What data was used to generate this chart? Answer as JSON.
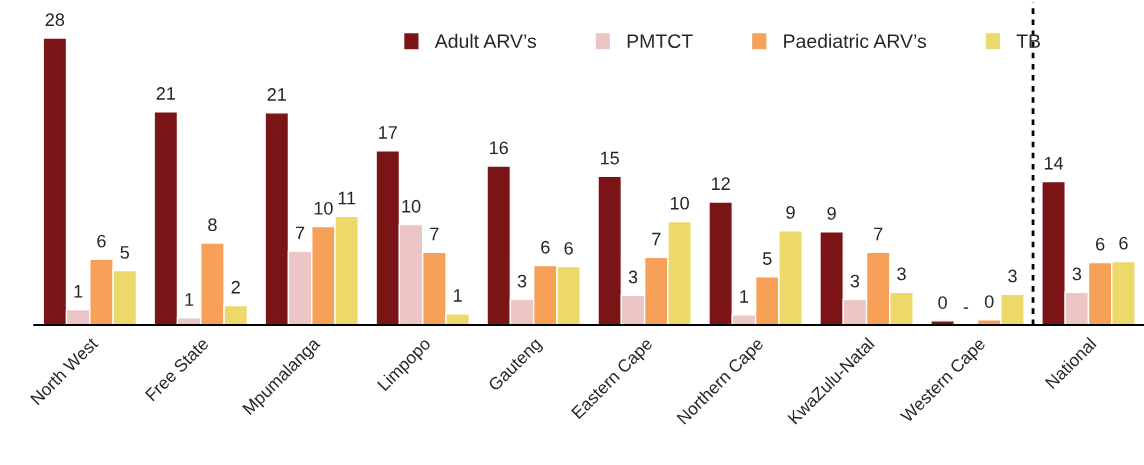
{
  "chart_data": {
    "type": "bar",
    "categories": [
      "North West",
      "Free State",
      "Mpumalanga",
      "Limpopo",
      "Gauteng",
      "Eastern Cape",
      "Northern Cape",
      "KwaZulu-Natal",
      "Western Cape",
      "National"
    ],
    "series": [
      {
        "name": "Adult ARV’s",
        "color": "#7b1416",
        "values": [
          28.0,
          20.8,
          20.7,
          17.0,
          15.5,
          14.5,
          12.0,
          9.1,
          0.4,
          14.0
        ],
        "value_labels": [
          "28",
          "21",
          "21",
          "17",
          "16",
          "15",
          "12",
          "9",
          "0",
          "14"
        ]
      },
      {
        "name": "PMTCT",
        "color": "#ecc6c4",
        "values": [
          1.5,
          0.7,
          7.2,
          9.8,
          2.5,
          2.9,
          1.0,
          2.5,
          null,
          3.2
        ],
        "value_labels": [
          "1",
          "1",
          "7",
          "10",
          "3",
          "3",
          "1",
          "3",
          "-",
          "3"
        ]
      },
      {
        "name": "Paediatric ARV’s",
        "color": "#f6a157",
        "values": [
          6.4,
          8.0,
          9.6,
          7.1,
          5.8,
          6.6,
          4.7,
          7.1,
          0.5,
          6.1
        ],
        "value_labels": [
          "6",
          "8",
          "10",
          "7",
          "6",
          "7",
          "5",
          "7",
          "0",
          "6"
        ]
      },
      {
        "name": "TB",
        "color": "#ecd96a",
        "values": [
          5.3,
          1.9,
          10.6,
          1.1,
          5.7,
          10.1,
          9.2,
          3.2,
          3.0,
          6.2
        ],
        "value_labels": [
          "5",
          "2",
          "11",
          "1",
          "6",
          "10",
          "9",
          "3",
          "3",
          "6"
        ]
      }
    ],
    "legend": "top",
    "grid": false,
    "tick_labels": "x"
  }
}
